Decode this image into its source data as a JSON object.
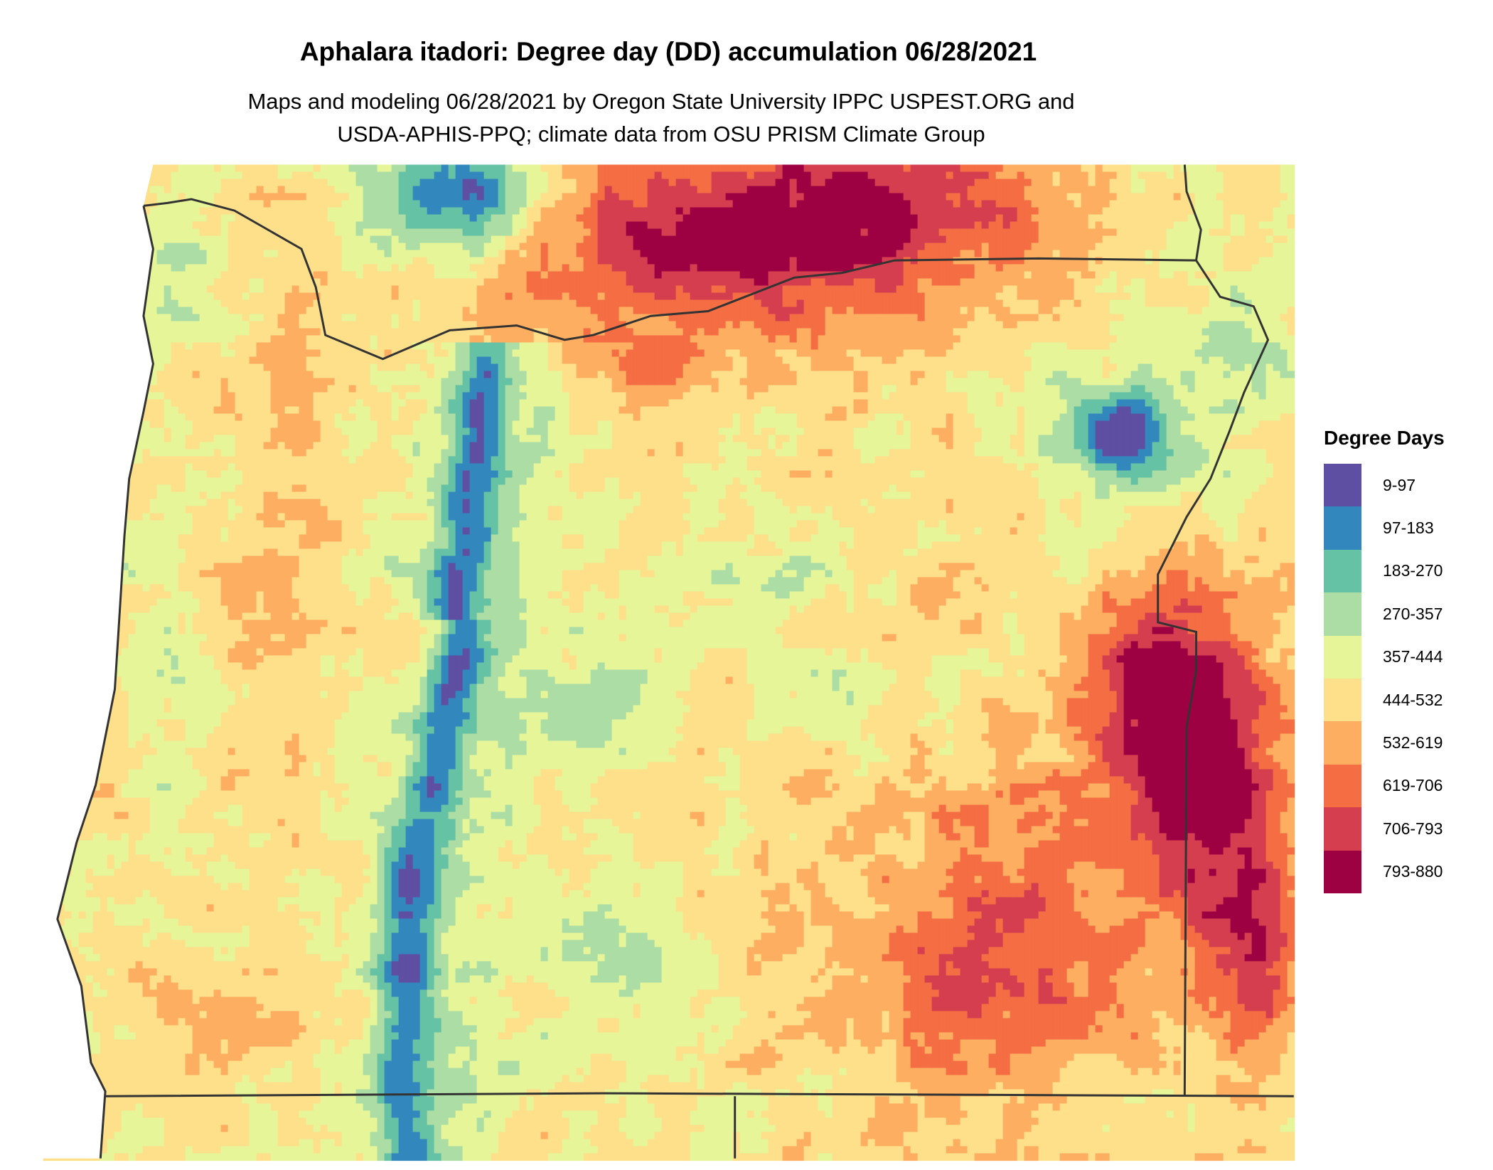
{
  "title": "Aphalara itadori: Degree day (DD) accumulation 06/28/2021",
  "subtitle_line1": "Maps and modeling 06/28/2021 by Oregon State University IPPC USPEST.ORG and",
  "subtitle_line2": "USDA-APHIS-PPQ; climate data from OSU PRISM Climate Group",
  "legend": {
    "title": "Degree Days",
    "bins": [
      {
        "label": "9-97",
        "color": "#5e4fa2"
      },
      {
        "label": "97-183",
        "color": "#3288bd"
      },
      {
        "label": "183-270",
        "color": "#66c2a5"
      },
      {
        "label": "270-357",
        "color": "#abdda4"
      },
      {
        "label": "357-444",
        "color": "#e6f598"
      },
      {
        "label": "444-532",
        "color": "#fee08b"
      },
      {
        "label": "532-619",
        "color": "#fdae61"
      },
      {
        "label": "619-706",
        "color": "#f46d43"
      },
      {
        "label": "706-793",
        "color": "#d53e4f"
      },
      {
        "label": "793-880",
        "color": "#9e0142"
      }
    ]
  },
  "chart_data": {
    "type": "heatmap",
    "title": "Aphalara itadori: Degree day (DD) accumulation 06/28/2021",
    "region": "Oregon",
    "value_range": [
      9,
      880
    ],
    "breaks": [
      9,
      97,
      183,
      270,
      357,
      444,
      532,
      619,
      706,
      793,
      880
    ],
    "legend_placement": "right",
    "boundary_color": "#333333",
    "ocean_color": "#ffffff"
  }
}
